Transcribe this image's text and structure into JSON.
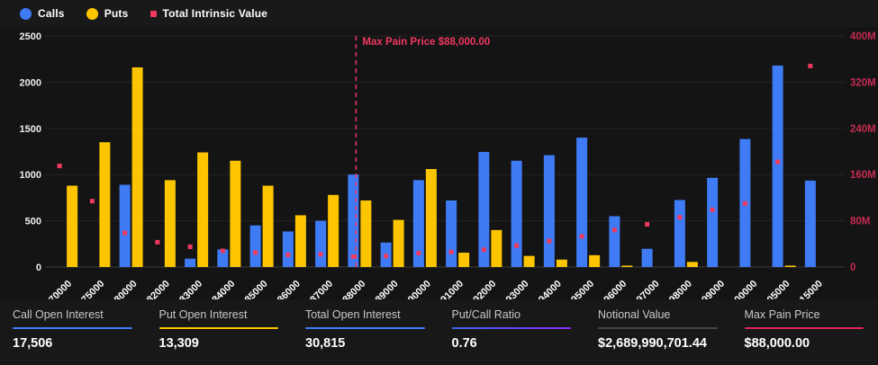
{
  "legend": {
    "items": [
      {
        "label": "Calls",
        "color": "#3e7bf5",
        "shape": "circle",
        "icon": "calls-series-dot"
      },
      {
        "label": "Puts",
        "color": "#fdc500",
        "shape": "circle",
        "icon": "puts-series-dot"
      },
      {
        "label": "Total Intrinsic Value",
        "color": "#f0395e",
        "shape": "square",
        "icon": "intrinsic-series-square"
      }
    ]
  },
  "colors": {
    "background": "#141414",
    "calls": "#3e7bf5",
    "puts": "#fdc500",
    "intrinsic": "#f0395e",
    "right_axis_text": "#c62b52",
    "left_axis_text": "#efefef",
    "gridline": "#242424",
    "baseline": "#3d3d3d",
    "annotation": "#ef3760"
  },
  "chart_data": {
    "type": "bar",
    "title": "",
    "xlabel": "",
    "ylabel_left": "",
    "ylabel_right": "",
    "grid": true,
    "legend_position": "top-left",
    "categories": [
      "70000",
      "75000",
      "80000",
      "82000",
      "83000",
      "84000",
      "85000",
      "86000",
      "87000",
      "88000",
      "89000",
      "90000",
      "91000",
      "92000",
      "93000",
      "94000",
      "95000",
      "96000",
      "97000",
      "98000",
      "99000",
      "100000",
      "105000",
      "115000"
    ],
    "series": [
      {
        "name": "Calls",
        "type": "bar",
        "axis": "left",
        "color": "#3e7bf5",
        "values": [
          0,
          0,
          890,
          0,
          90,
          190,
          450,
          385,
          500,
          1000,
          265,
          940,
          720,
          1245,
          1150,
          1210,
          1400,
          550,
          197,
          725,
          965,
          1385,
          2180,
          935
        ]
      },
      {
        "name": "Puts",
        "type": "bar",
        "axis": "left",
        "color": "#fdc500",
        "values": [
          880,
          1350,
          2160,
          940,
          1240,
          1150,
          880,
          560,
          780,
          720,
          510,
          1060,
          155,
          400,
          120,
          80,
          128,
          15,
          0,
          55,
          0,
          0,
          15,
          0
        ]
      },
      {
        "name": "Total Intrinsic Value",
        "type": "scatter",
        "axis": "right",
        "color": "#f0395e",
        "unit": "M",
        "values": [
          175,
          114,
          59,
          43,
          35,
          28,
          25,
          21,
          22,
          18,
          19,
          24,
          26,
          30,
          37,
          45,
          53,
          64,
          74,
          86,
          99,
          110,
          182,
          348
        ]
      }
    ],
    "y_left": {
      "min": 0,
      "max": 2500,
      "tick_step": 500,
      "tick_labels": [
        "0",
        "500",
        "1000",
        "1500",
        "2000",
        "2500"
      ]
    },
    "y_right": {
      "min": 0,
      "max": 400,
      "unit": "M",
      "tick_step": 80,
      "tick_labels": [
        "0",
        "80M",
        "160M",
        "240M",
        "320M",
        "400M"
      ]
    },
    "annotation": {
      "label": "Max Pain Price $88,000.00",
      "category": "88000",
      "style": "dashed-vertical-line"
    }
  },
  "stats": [
    {
      "label": "Call Open Interest",
      "value": "17,506",
      "underline": "#3e7bf5"
    },
    {
      "label": "Put Open Interest",
      "value": "13,309",
      "underline": "#fdc500"
    },
    {
      "label": "Total Open Interest",
      "value": "30,815",
      "underline": "#3e7bf5"
    },
    {
      "label": "Put/Call Ratio",
      "value": "0.76",
      "underline": "linear-gradient(90deg,#3e63f5,#8a2ff7)"
    },
    {
      "label": "Notional Value",
      "value": "$2,689,990,701.44",
      "underline": "#3f434c"
    },
    {
      "label": "Max Pain Price",
      "value": "$88,000.00",
      "underline": "#e02456"
    }
  ]
}
